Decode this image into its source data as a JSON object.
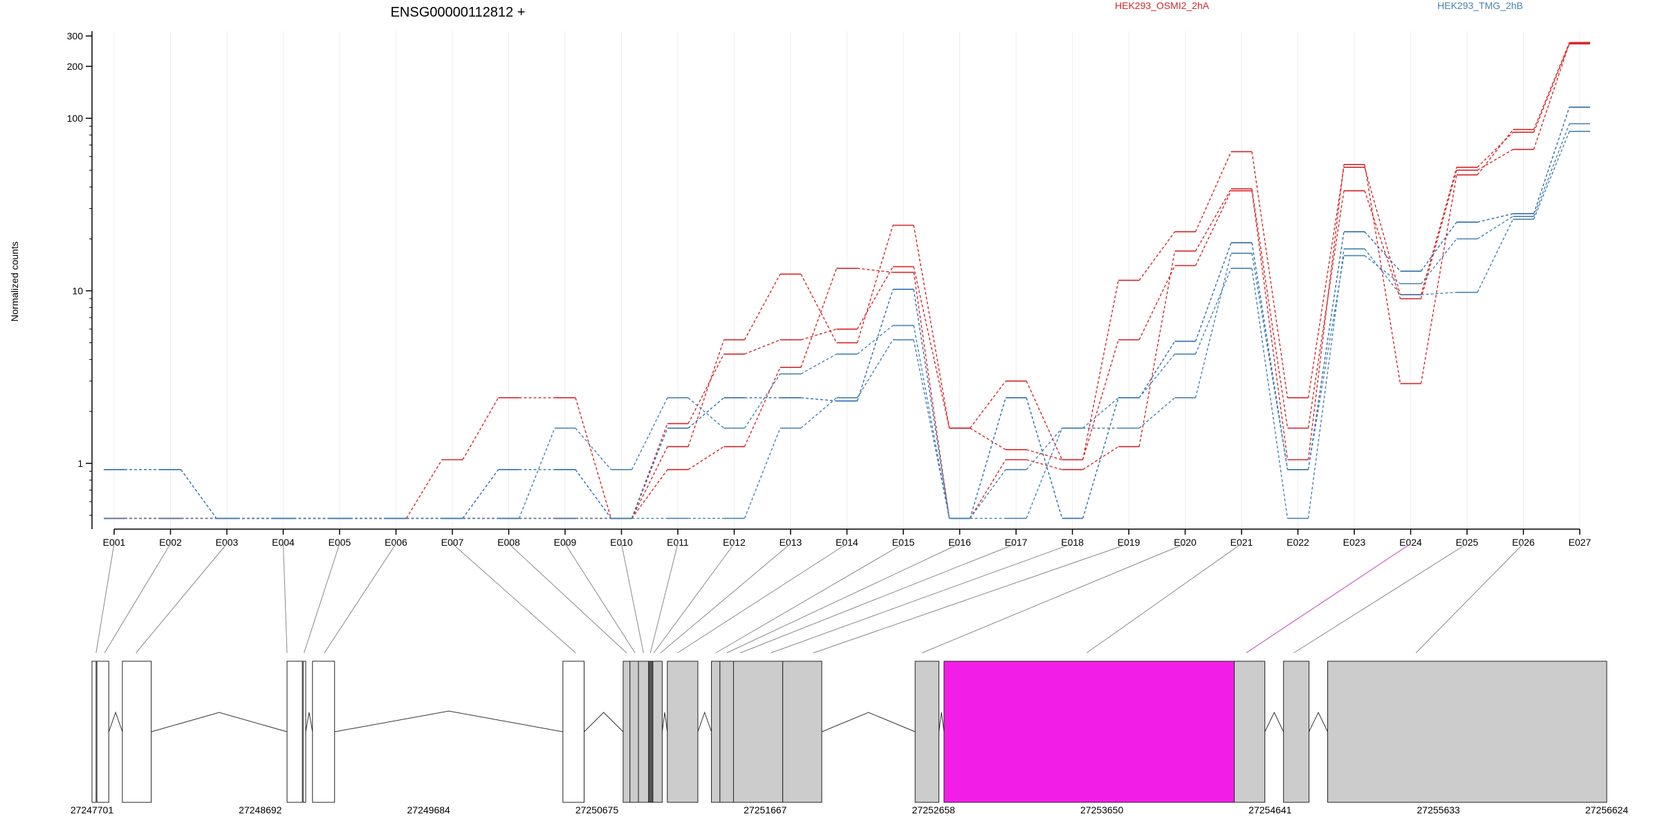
{
  "chart_data": {
    "type": "line",
    "title": "ENSG00000112812 +",
    "ylabel": "Normalized counts",
    "xlabel": "",
    "y_scale": "log",
    "ylim": [
      0.5,
      320
    ],
    "grid": "vertical",
    "legend_placement": "top-right",
    "y_ticks": [
      1,
      10,
      100,
      200,
      300
    ],
    "exons": [
      "E001",
      "E002",
      "E003",
      "E004",
      "E005",
      "E006",
      "E007",
      "E008",
      "E009",
      "E010",
      "E011",
      "E012",
      "E013",
      "E014",
      "E015",
      "E016",
      "E017",
      "E018",
      "E019",
      "E020",
      "E021",
      "E022",
      "E023",
      "E024",
      "E025",
      "E026",
      "E027"
    ],
    "series": [
      {
        "name": "HEK293_OSMI2_2hA",
        "color": "#d62728",
        "values": [
          0.48,
          0.48,
          0.48,
          0.48,
          0.48,
          0.48,
          1.05,
          2.4,
          2.4,
          0.48,
          1.25,
          5.2,
          12.5,
          5.0,
          24,
          1.6,
          3.0,
          1.05,
          11.5,
          22,
          64,
          2.4,
          52,
          9.5,
          52,
          83,
          270
        ]
      },
      {
        "name": "HEK293_OSMI2_2hA",
        "color": "#d62728",
        "values": [
          0.48,
          0.48,
          0.48,
          0.48,
          0.48,
          0.48,
          0.48,
          0.48,
          0.48,
          0.48,
          1.7,
          4.3,
          5.2,
          6.0,
          13.8,
          1.6,
          1.2,
          1.05,
          5.2,
          14,
          38,
          1.05,
          54,
          2.9,
          47,
          86,
          275
        ]
      },
      {
        "name": "HEK293_OSMI2_2hA",
        "color": "#d62728",
        "values": [
          0.48,
          0.48,
          0.48,
          0.48,
          0.48,
          0.48,
          0.48,
          0.48,
          0.48,
          0.48,
          0.92,
          1.25,
          3.6,
          13.5,
          12.8,
          0.48,
          1.05,
          0.92,
          1.25,
          17,
          39,
          1.6,
          38,
          9.0,
          50,
          66,
          272
        ]
      },
      {
        "name": "HEK293_TMG_2hB",
        "color": "#2b6cb0",
        "values": [
          0.92,
          0.92,
          0.48,
          0.48,
          0.48,
          0.48,
          0.48,
          0.92,
          0.92,
          0.48,
          1.6,
          2.4,
          2.4,
          2.3,
          10.2,
          0.48,
          2.4,
          0.48,
          2.4,
          5.1,
          19,
          0.92,
          22,
          13,
          25,
          28,
          116
        ]
      },
      {
        "name": "HEK293_TMG_2hB",
        "color": "#4682b4",
        "values": [
          0.92,
          0.92,
          0.48,
          0.48,
          0.48,
          0.48,
          0.48,
          0.48,
          1.6,
          0.92,
          2.4,
          1.6,
          3.3,
          4.3,
          6.3,
          0.48,
          0.92,
          1.6,
          1.6,
          2.4,
          16.5,
          0.92,
          16,
          11,
          20,
          27,
          93
        ]
      },
      {
        "name": "HEK293_TMG_2hB",
        "color": "#4682b4",
        "values": [
          0.48,
          0.48,
          0.48,
          0.48,
          0.48,
          0.48,
          0.48,
          0.48,
          0.48,
          0.48,
          0.48,
          0.48,
          1.6,
          2.4,
          5.2,
          0.48,
          0.48,
          1.6,
          2.4,
          4.3,
          13.5,
          0.48,
          17.5,
          9.5,
          9.8,
          26,
          84
        ]
      }
    ],
    "genomic_axis_labels": [
      "27247701",
      "27248692",
      "27249684",
      "27250675",
      "27251667",
      "27252658",
      "27253650",
      "27254641",
      "27255633",
      "27256624"
    ],
    "genomic_range": [
      27247701,
      27256624
    ],
    "exon_blocks": [
      {
        "start": 27247701,
        "end": 27247725,
        "fill": "#ffffff"
      },
      {
        "start": 27247730,
        "end": 27247800,
        "fill": "#ffffff"
      },
      {
        "start": 27247880,
        "end": 27248050,
        "fill": "#ffffff"
      },
      {
        "start": 27248850,
        "end": 27248940,
        "fill": "#ffffff"
      },
      {
        "start": 27248945,
        "end": 27248960,
        "fill": "#ffffff"
      },
      {
        "start": 27249000,
        "end": 27249130,
        "fill": "#ffffff"
      },
      {
        "start": 27250475,
        "end": 27250600,
        "fill": "#ffffff"
      },
      {
        "start": 27250830,
        "end": 27250870,
        "fill": "#cccccc"
      },
      {
        "start": 27250870,
        "end": 27250920,
        "fill": "#cccccc"
      },
      {
        "start": 27250920,
        "end": 27250980,
        "fill": "#cccccc"
      },
      {
        "start": 27250980,
        "end": 27251005,
        "fill": "#555555"
      },
      {
        "start": 27251005,
        "end": 27251060,
        "fill": "#cccccc"
      },
      {
        "start": 27251090,
        "end": 27251270,
        "fill": "#cccccc"
      },
      {
        "start": 27251350,
        "end": 27251400,
        "fill": "#cccccc"
      },
      {
        "start": 27251400,
        "end": 27251480,
        "fill": "#cccccc"
      },
      {
        "start": 27251480,
        "end": 27251770,
        "fill": "#cccccc"
      },
      {
        "start": 27251770,
        "end": 27252000,
        "fill": "#cccccc"
      },
      {
        "start": 27252550,
        "end": 27252690,
        "fill": "#cccccc"
      },
      {
        "start": 27252720,
        "end": 27254430,
        "fill": "#f21ee8"
      },
      {
        "start": 27254430,
        "end": 27254610,
        "fill": "#cccccc"
      },
      {
        "start": 27254720,
        "end": 27254870,
        "fill": "#cccccc"
      },
      {
        "start": 27254980,
        "end": 27256624,
        "fill": "#cccccc"
      }
    ],
    "exon_link_targets": [
      27247725,
      27247775,
      27247960,
      27248850,
      27248950,
      27249070,
      27250550,
      27250850,
      27250900,
      27250950,
      27250990,
      27251010,
      27251050,
      27251150,
      27251375,
      27251440,
      27251520,
      27251700,
      27251950,
      27252590,
      27253560,
      27254500,
      27254780,
      27255500
    ]
  }
}
